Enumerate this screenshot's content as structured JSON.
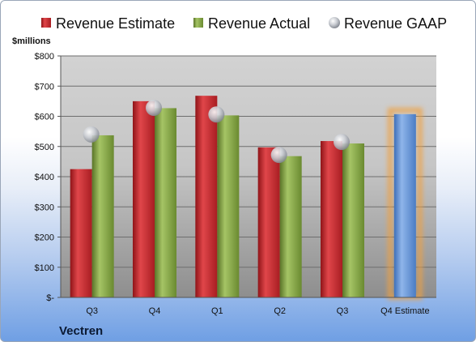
{
  "chart_data": {
    "type": "bar",
    "ylabel": "$millions",
    "company": "Vectren",
    "categories": [
      "Q3",
      "Q4",
      "Q1",
      "Q2",
      "Q3",
      "Q4 Estimate"
    ],
    "ylim": [
      0,
      800
    ],
    "yticks": [
      0,
      100,
      200,
      300,
      400,
      500,
      600,
      700,
      800
    ],
    "ytick_labels": [
      "$-",
      "$100",
      "$200",
      "$300",
      "$400",
      "$500",
      "$600",
      "$700",
      "$800"
    ],
    "legend_position": "top",
    "grid": true,
    "series": [
      {
        "name": "Revenue Estimate",
        "type": "bar",
        "color": "#c0282d",
        "values": [
          425,
          650,
          668,
          497,
          518,
          null
        ]
      },
      {
        "name": "Revenue Actual",
        "type": "bar",
        "color": "#7a9a3c",
        "values": [
          537,
          627,
          603,
          468,
          510,
          null
        ]
      },
      {
        "name": "Revenue GAAP",
        "type": "scatter",
        "color": "#b8bcc4",
        "values": [
          540,
          628,
          606,
          472,
          515,
          null
        ]
      },
      {
        "name": "",
        "type": "bar",
        "color": "#6a98d8",
        "highlight": "#f0a040",
        "values": [
          null,
          null,
          null,
          null,
          null,
          607
        ]
      }
    ]
  }
}
